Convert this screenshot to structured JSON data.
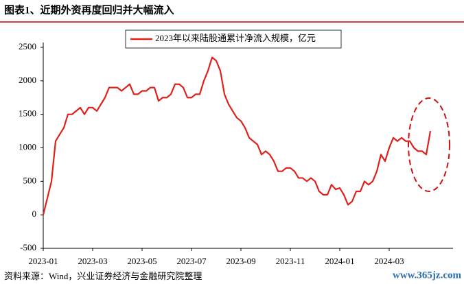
{
  "chart_data": {
    "type": "line",
    "title": "图表1、近期外资再度回归并大幅流入",
    "source": "资料来源：Wind，兴业证券经济与金融研究院整理",
    "watermark": "www.365jz.com",
    "categories": [
      "2023-01",
      null,
      null,
      null,
      null,
      null,
      null,
      null,
      null,
      null,
      null,
      null,
      "2023-03",
      null,
      null,
      null,
      null,
      null,
      null,
      null,
      null,
      null,
      null,
      null,
      "2023-05",
      null,
      null,
      null,
      null,
      null,
      null,
      null,
      null,
      null,
      null,
      null,
      "2023-07",
      null,
      null,
      null,
      null,
      null,
      null,
      null,
      null,
      null,
      null,
      null,
      "2023-09",
      null,
      null,
      null,
      null,
      null,
      null,
      null,
      null,
      null,
      null,
      null,
      "2023-11",
      null,
      null,
      null,
      null,
      null,
      null,
      null,
      null,
      null,
      null,
      null,
      "2024-01",
      null,
      null,
      null,
      null,
      null,
      null,
      null,
      null,
      null,
      null,
      null,
      "2024-03",
      null,
      null,
      null,
      null,
      null,
      null,
      null,
      null,
      null,
      null
    ],
    "series": [
      {
        "name": "2023年以来陆股通累计净流入规模，亿元",
        "color": "#e0201b",
        "values": [
          0,
          250,
          500,
          1100,
          1200,
          1300,
          1500,
          1500,
          1550,
          1600,
          1500,
          1600,
          1600,
          1550,
          1650,
          1750,
          1900,
          1900,
          1900,
          1850,
          1900,
          1950,
          1800,
          1800,
          1850,
          1850,
          1900,
          1900,
          1700,
          1750,
          1750,
          1800,
          1950,
          1950,
          1900,
          1750,
          1750,
          1800,
          1800,
          2000,
          2150,
          2350,
          2300,
          2150,
          1800,
          1650,
          1550,
          1450,
          1400,
          1300,
          1150,
          1100,
          1050,
          900,
          950,
          900,
          800,
          650,
          650,
          700,
          700,
          650,
          550,
          550,
          500,
          550,
          500,
          350,
          300,
          300,
          450,
          380,
          400,
          300,
          150,
          200,
          350,
          350,
          500,
          450,
          500,
          650,
          900,
          800,
          1000,
          1150,
          1100,
          1150,
          1100,
          1100,
          1000,
          950,
          950,
          900,
          1250
        ]
      }
    ],
    "ylim": [
      -500,
      2500
    ],
    "yticks": [
      -500,
      0,
      500,
      1000,
      1500,
      2000,
      2500
    ]
  }
}
